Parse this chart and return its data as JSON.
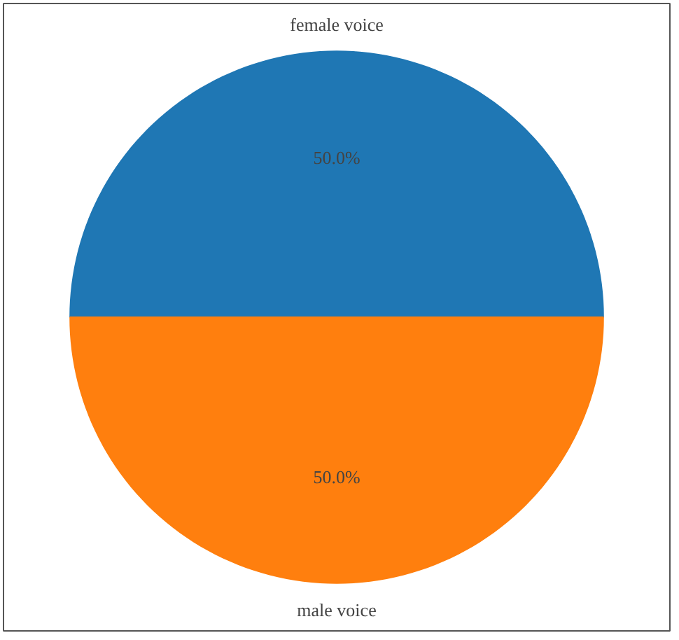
{
  "chart_data": {
    "type": "pie",
    "categories": [
      "female voice",
      "male voice"
    ],
    "values": [
      50,
      50
    ],
    "colors": [
      "#1f77b4",
      "#ff7f0e"
    ],
    "value_labels": [
      "50.0%",
      "50.0%"
    ]
  }
}
